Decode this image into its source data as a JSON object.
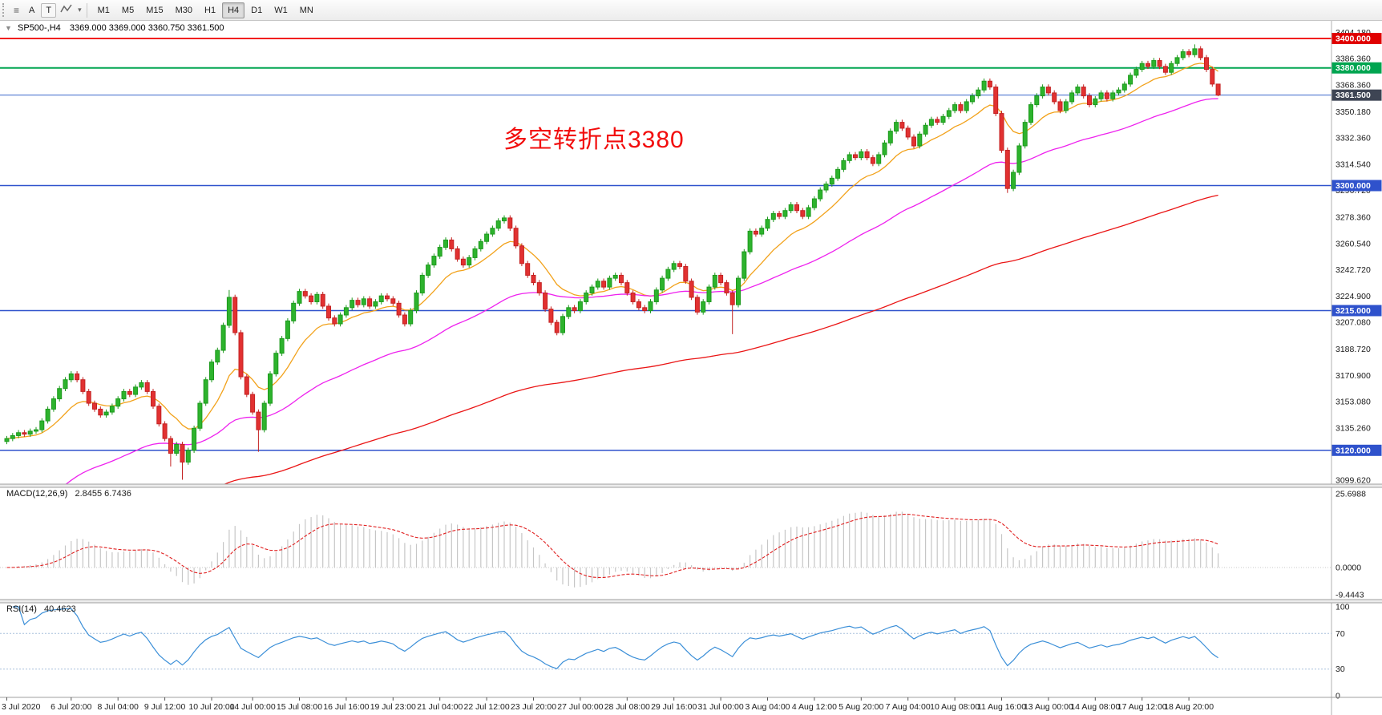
{
  "toolbar": {
    "tool_a": "A",
    "tool_t": "T",
    "timeframes": [
      "M1",
      "M5",
      "M15",
      "M30",
      "H1",
      "H4",
      "D1",
      "W1",
      "MN"
    ],
    "active_timeframe": "H4"
  },
  "icons": {
    "collapse": "▼",
    "dropdown": "▾",
    "chart_list": "≡"
  },
  "chart": {
    "symbol": "SP500-,H4",
    "ohlc_text": "3369.000 3369.000 3360.750 3361.500",
    "annotation": "多空转折点3380",
    "price_range": {
      "min": 3097,
      "max": 3412
    },
    "price_axis_labels": [
      "3404.180",
      "3386.360",
      "3368.360",
      "3350.180",
      "3332.360",
      "3314.540",
      "3296.720",
      "3278.360",
      "3260.540",
      "3242.720",
      "3224.900",
      "3207.080",
      "3188.720",
      "3170.900",
      "3153.080",
      "3135.260",
      "3117.440",
      "3099.620"
    ],
    "hlines": [
      {
        "price": 3400,
        "label": "3400.000",
        "color": "#f21f1f",
        "tag_bg": "#e00000",
        "width": 2
      },
      {
        "price": 3380,
        "label": "3380.000",
        "color": "#00a550",
        "tag_bg": "#00a550",
        "width": 2
      },
      {
        "price": 3361.5,
        "label": "3361.500",
        "color": "#3a66cc",
        "tag_bg": "#3e4554",
        "width": 1
      },
      {
        "price": 3300,
        "label": "3300.000",
        "color": "#2f52cc",
        "tag_bg": "#2f52cc",
        "width": 1.5
      },
      {
        "price": 3215,
        "label": "3215.000",
        "color": "#2f52cc",
        "tag_bg": "#2f52cc",
        "width": 1.5
      },
      {
        "price": 3120,
        "label": "3120.000",
        "color": "#2f52cc",
        "tag_bg": "#2f52cc",
        "width": 1.5
      }
    ],
    "time_axis": [
      {
        "label": "3 Jul 2020",
        "bar": 0
      },
      {
        "label": "6 Jul 20:00",
        "bar": 11
      },
      {
        "label": "8 Jul 04:00",
        "bar": 19
      },
      {
        "label": "9 Jul 12:00",
        "bar": 27
      },
      {
        "label": "10 Jul 20:00",
        "bar": 35
      },
      {
        "label": "14 Jul 00:00",
        "bar": 42
      },
      {
        "label": "15 Jul 08:00",
        "bar": 50
      },
      {
        "label": "16 Jul 16:00",
        "bar": 58
      },
      {
        "label": "19 Jul 23:00",
        "bar": 66
      },
      {
        "label": "21 Jul 04:00",
        "bar": 74
      },
      {
        "label": "22 Jul 12:00",
        "bar": 82
      },
      {
        "label": "23 Jul 20:00",
        "bar": 90
      },
      {
        "label": "27 Jul 00:00",
        "bar": 98
      },
      {
        "label": "28 Jul 08:00",
        "bar": 106
      },
      {
        "label": "29 Jul 16:00",
        "bar": 114
      },
      {
        "label": "31 Jul 00:00",
        "bar": 122
      },
      {
        "label": "3 Aug 04:00",
        "bar": 130
      },
      {
        "label": "4 Aug 12:00",
        "bar": 138
      },
      {
        "label": "5 Aug 20:00",
        "bar": 146
      },
      {
        "label": "7 Aug 04:00",
        "bar": 154
      },
      {
        "label": "10 Aug 08:00",
        "bar": 162
      },
      {
        "label": "11 Aug 16:00",
        "bar": 170
      },
      {
        "label": "13 Aug 00:00",
        "bar": 178
      },
      {
        "label": "14 Aug 08:00",
        "bar": 186
      },
      {
        "label": "17 Aug 12:00",
        "bar": 194
      },
      {
        "label": "18 Aug 20:00",
        "bar": 202
      }
    ]
  },
  "chart_data": {
    "type": "candlestick",
    "symbol": "SP500-",
    "timeframe": "H4",
    "current_bar_ohlc": {
      "open": 3369.0,
      "high": 3369.0,
      "low": 3360.75,
      "close": 3361.5
    },
    "wick_pad": 1.8,
    "closes": [
      3128,
      3130,
      3132,
      3131,
      3133,
      3134,
      3140,
      3148,
      3155,
      3162,
      3168,
      3172,
      3168,
      3160,
      3152,
      3148,
      3144,
      3146,
      3150,
      3155,
      3160,
      3158,
      3163,
      3166,
      3160,
      3150,
      3138,
      3128,
      3118,
      3124,
      3112,
      3120,
      3135,
      3152,
      3168,
      3180,
      3188,
      3205,
      3224,
      3200,
      3170,
      3158,
      3146,
      3134,
      3152,
      3172,
      3186,
      3196,
      3208,
      3220,
      3228,
      3225,
      3221,
      3226,
      3218,
      3210,
      3206,
      3212,
      3217,
      3222,
      3219,
      3223,
      3218,
      3221,
      3225,
      3223,
      3220,
      3212,
      3206,
      3215,
      3227,
      3239,
      3246,
      3252,
      3258,
      3263,
      3257,
      3250,
      3246,
      3251,
      3257,
      3262,
      3267,
      3271,
      3276,
      3278,
      3271,
      3259,
      3247,
      3239,
      3234,
      3227,
      3216,
      3207,
      3200,
      3211,
      3217,
      3215,
      3221,
      3227,
      3231,
      3235,
      3231,
      3237,
      3239,
      3234,
      3227,
      3221,
      3217,
      3215,
      3221,
      3229,
      3237,
      3243,
      3247,
      3245,
      3235,
      3224,
      3214,
      3221,
      3231,
      3239,
      3234,
      3227,
      3219,
      3237,
      3255,
      3269,
      3267,
      3271,
      3277,
      3281,
      3279,
      3283,
      3287,
      3283,
      3279,
      3285,
      3291,
      3297,
      3301,
      3305,
      3311,
      3317,
      3321,
      3319,
      3323,
      3319,
      3315,
      3321,
      3329,
      3337,
      3343,
      3339,
      3333,
      3327,
      3335,
      3341,
      3345,
      3343,
      3347,
      3351,
      3355,
      3351,
      3357,
      3361,
      3365,
      3371,
      3367,
      3349,
      3324,
      3298,
      3309,
      3327,
      3343,
      3355,
      3361,
      3367,
      3363,
      3357,
      3351,
      3357,
      3363,
      3367,
      3361,
      3355,
      3359,
      3363,
      3359,
      3363,
      3365,
      3369,
      3375,
      3379,
      3383,
      3381,
      3385,
      3381,
      3377,
      3383,
      3387,
      3391,
      3389,
      3393,
      3387,
      3379,
      3369,
      3361.5
    ],
    "wick_overrides": {
      "28": {
        "low": 3109
      },
      "30": {
        "low": 3100
      },
      "38": {
        "high": 3229
      },
      "43": {
        "low": 3119
      },
      "124": {
        "low": 3199
      },
      "171": {
        "low": 3295
      },
      "203": {
        "high": 3396
      },
      "207": {
        "high": 3369,
        "low": 3360.75
      }
    },
    "moving_averages": [
      {
        "name": "fast-ma",
        "color": "#f2a21b",
        "k": 0.15
      },
      {
        "name": "medium-ma",
        "color": "#ee22ee",
        "k": 0.04,
        "seed": 3070
      },
      {
        "name": "slow-ma",
        "color": "#ea1515",
        "k": 0.013,
        "seed": 3062
      }
    ],
    "indicators": {
      "macd": {
        "name": "MACD(12,26,9)",
        "values": "2.8455 6.7436",
        "params": [
          12,
          26,
          9
        ],
        "axis_labels": [
          "25.6988",
          "0.0000",
          "-9.4443"
        ],
        "axis_values": [
          25.6988,
          0,
          -9.4443
        ]
      },
      "rsi": {
        "name": "RSI(14)",
        "value": "40.4623",
        "period": 14,
        "levels": [
          70,
          30
        ],
        "axis_labels": [
          "100",
          "70",
          "30",
          "0"
        ],
        "axis_values": [
          100,
          70,
          30,
          0
        ]
      }
    }
  },
  "colors": {
    "up": "#2db32d",
    "up_stroke": "#1d9a1d",
    "down": "#e23131",
    "down_stroke": "#c32222",
    "macd_hist": "#c6c6c6",
    "macd_signal": "#e01f1f",
    "rsi_line": "#3b8fd8",
    "rsi_level": "#a8c0dc",
    "axis_text": "#1a1a1a",
    "panel_line": "#9f9f9f"
  }
}
